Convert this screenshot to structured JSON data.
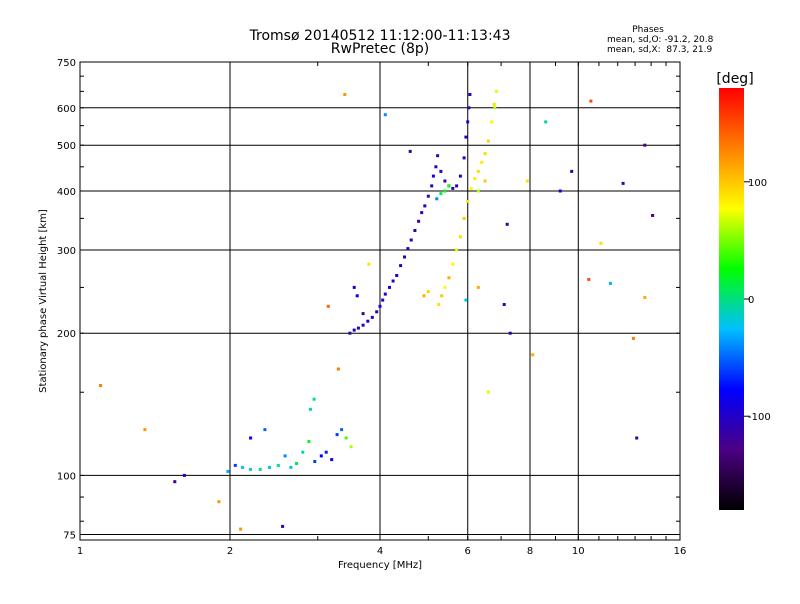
{
  "chart_data": {
    "type": "scatter",
    "title": "Tromsø 20140512 11:12:00-11:13:43",
    "subtitle": "RwPretec (8p)",
    "phase_box": {
      "title": "Phases",
      "line1": "mean, sd,O: -91.2, 20.8",
      "line2": "mean, sd,X:  87.3, 21.9"
    },
    "xlabel": "Frequency [MHz]",
    "ylabel": "Stationary phase Virtual Height [km]",
    "x_scale": "log",
    "y_scale": "log",
    "xlim": [
      1,
      16
    ],
    "ylim": [
      73,
      750
    ],
    "x_ticks": [
      1,
      2,
      4,
      6,
      8,
      10,
      16
    ],
    "x_tick_labels": [
      "1",
      "2",
      "4",
      "6",
      "8",
      "10",
      "16"
    ],
    "y_ticks": [
      75,
      100,
      200,
      300,
      400,
      500,
      600,
      750
    ],
    "y_tick_labels": [
      "75",
      "100",
      "200",
      "300",
      "400",
      "500",
      "600",
      "750"
    ],
    "grid": true,
    "colorbar": {
      "label": "[deg]",
      "range": [
        -180,
        180
      ],
      "ticks": [
        100,
        0,
        -100
      ],
      "tick_labels": [
        "100",
        "0",
        "-100"
      ],
      "colors": [
        "#000000",
        "#4b0082",
        "#0000ff",
        "#00bfff",
        "#00ff00",
        "#ffff00",
        "#ff8000",
        "#ff0000"
      ]
    },
    "series": [
      {
        "points": [
          [
            1.98,
            102,
            -30
          ],
          [
            2.05,
            105,
            -60
          ],
          [
            2.12,
            104,
            -20
          ],
          [
            2.2,
            103,
            -10
          ],
          [
            2.3,
            103,
            0
          ],
          [
            2.4,
            104,
            -20
          ],
          [
            2.5,
            105,
            0
          ],
          [
            2.58,
            110,
            -40
          ],
          [
            2.65,
            104,
            -20
          ],
          [
            2.72,
            106,
            10
          ],
          [
            2.8,
            112,
            -10
          ],
          [
            2.88,
            118,
            20
          ],
          [
            2.96,
            107,
            -60
          ],
          [
            3.05,
            110,
            -80
          ],
          [
            3.12,
            112,
            -70
          ],
          [
            3.2,
            108,
            -90
          ],
          [
            3.28,
            122,
            -60
          ],
          [
            3.35,
            125,
            -50
          ],
          [
            3.42,
            120,
            40
          ],
          [
            3.5,
            115,
            60
          ],
          [
            2.9,
            138,
            -10
          ],
          [
            2.95,
            145,
            0
          ],
          [
            2.2,
            120,
            -80
          ],
          [
            2.35,
            125,
            -50
          ],
          [
            3.48,
            200,
            -110
          ],
          [
            3.55,
            203,
            -100
          ],
          [
            3.62,
            205,
            -110
          ],
          [
            3.7,
            208,
            -100
          ],
          [
            3.78,
            212,
            -95
          ],
          [
            3.86,
            216,
            -105
          ],
          [
            3.94,
            222,
            -100
          ],
          [
            4.0,
            228,
            -100
          ],
          [
            4.05,
            235,
            -100
          ],
          [
            4.1,
            242,
            -100
          ],
          [
            4.18,
            250,
            -100
          ],
          [
            4.25,
            258,
            -105
          ],
          [
            4.32,
            265,
            -100
          ],
          [
            4.4,
            278,
            -100
          ],
          [
            4.48,
            290,
            -110
          ],
          [
            4.55,
            302,
            -110
          ],
          [
            4.62,
            315,
            -100
          ],
          [
            4.7,
            330,
            -110
          ],
          [
            4.78,
            345,
            -120
          ],
          [
            4.85,
            360,
            -110
          ],
          [
            4.92,
            372,
            -100
          ],
          [
            5.0,
            390,
            -110
          ],
          [
            5.08,
            410,
            -100
          ],
          [
            5.12,
            430,
            -90
          ],
          [
            5.18,
            450,
            -100
          ],
          [
            5.22,
            475,
            -110
          ],
          [
            5.3,
            440,
            -100
          ],
          [
            5.4,
            420,
            -110
          ],
          [
            5.5,
            410,
            -105
          ],
          [
            5.6,
            405,
            -110
          ],
          [
            5.7,
            410,
            -100
          ],
          [
            5.8,
            430,
            -100
          ],
          [
            5.9,
            470,
            -100
          ],
          [
            5.95,
            520,
            -95
          ],
          [
            6.0,
            560,
            -100
          ],
          [
            6.03,
            600,
            -110
          ],
          [
            6.06,
            640,
            -105
          ],
          [
            3.55,
            250,
            -90
          ],
          [
            3.6,
            240,
            -80
          ],
          [
            3.7,
            220,
            -120
          ],
          [
            5.4,
            400,
            20
          ],
          [
            5.5,
            410,
            30
          ],
          [
            5.3,
            395,
            10
          ],
          [
            5.2,
            385,
            -40
          ]
        ]
      },
      {
        "points": [
          [
            5.25,
            230,
            90
          ],
          [
            5.32,
            240,
            100
          ],
          [
            5.4,
            250,
            80
          ],
          [
            5.5,
            262,
            110
          ],
          [
            5.6,
            280,
            80
          ],
          [
            5.7,
            300,
            70
          ],
          [
            5.8,
            320,
            90
          ],
          [
            5.9,
            350,
            100
          ],
          [
            6.0,
            380,
            90
          ],
          [
            6.1,
            405,
            80
          ],
          [
            6.2,
            425,
            85
          ],
          [
            6.3,
            440,
            90
          ],
          [
            6.4,
            460,
            85
          ],
          [
            6.5,
            480,
            90
          ],
          [
            6.6,
            510,
            95
          ],
          [
            6.7,
            560,
            80
          ],
          [
            6.78,
            610,
            90
          ],
          [
            6.85,
            650,
            70
          ],
          [
            4.9,
            240,
            110
          ],
          [
            5.0,
            245,
            95
          ],
          [
            6.3,
            400,
            60
          ],
          [
            6.5,
            420,
            100
          ],
          [
            6.8,
            600,
            60
          ]
        ]
      },
      {
        "points": [
          [
            1.1,
            155,
            130
          ],
          [
            1.35,
            125,
            120
          ],
          [
            1.55,
            97,
            -120
          ],
          [
            1.62,
            100,
            -100
          ],
          [
            1.9,
            88,
            120
          ],
          [
            2.1,
            77,
            120
          ],
          [
            2.55,
            78,
            -100
          ],
          [
            3.4,
            640,
            120
          ],
          [
            4.1,
            580,
            -40
          ],
          [
            3.8,
            280,
            90
          ],
          [
            3.15,
            228,
            140
          ],
          [
            5.95,
            235,
            -20
          ],
          [
            6.3,
            250,
            110
          ],
          [
            7.2,
            340,
            -110
          ],
          [
            7.3,
            200,
            -100
          ],
          [
            7.1,
            230,
            -110
          ],
          [
            7.9,
            420,
            90
          ],
          [
            8.6,
            560,
            -10
          ],
          [
            9.2,
            400,
            -90
          ],
          [
            9.7,
            440,
            -110
          ],
          [
            10.6,
            620,
            150
          ],
          [
            11.1,
            310,
            90
          ],
          [
            12.3,
            415,
            -110
          ],
          [
            13.1,
            120,
            -110
          ],
          [
            13.6,
            500,
            -130
          ],
          [
            14.1,
            355,
            -120
          ],
          [
            11.6,
            255,
            -30
          ],
          [
            12.9,
            195,
            130
          ],
          [
            13.6,
            238,
            110
          ],
          [
            8.1,
            180,
            110
          ],
          [
            10.5,
            260,
            150
          ],
          [
            6.6,
            150,
            70
          ],
          [
            3.3,
            168,
            130
          ],
          [
            4.6,
            485,
            -110
          ]
        ]
      }
    ]
  }
}
